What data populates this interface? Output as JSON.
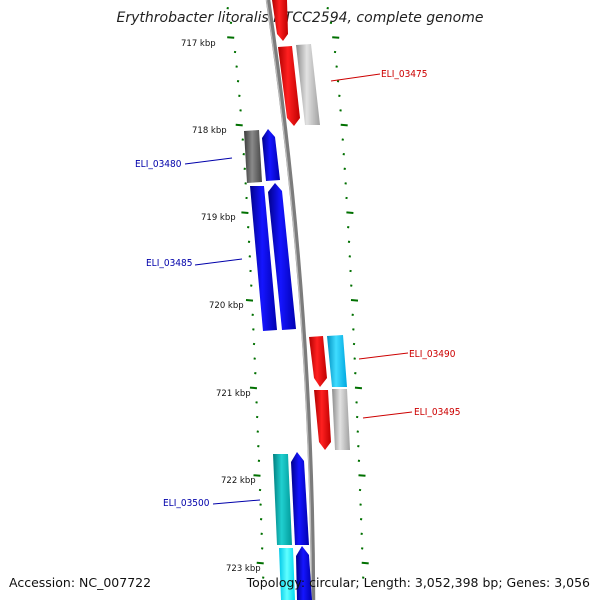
{
  "title": "Erythrobacter litoralis HTCC2594, complete genome",
  "footer": {
    "accession": "Accession: NC_007722",
    "topology": "Topology: circular; Length: 3,052,398 bp; Genes: 3,056"
  },
  "ticks": [
    "717 kbp",
    "718 kbp",
    "719 kbp",
    "720 kbp",
    "721 kbp",
    "722 kbp",
    "723 kbp"
  ],
  "gene_labels": [
    "ELI_03475",
    "ELI_03480",
    "ELI_03485",
    "ELI_03490",
    "ELI_03495",
    "ELI_03500"
  ],
  "colors": {
    "red": "#ff0000",
    "blue": "#0000ee",
    "grey": "#b9b9b9",
    "dark_grey": "#5a5a5a",
    "cyan": "#00c8ff",
    "teal": "#00b4b4",
    "tick_green": "#007000",
    "backbone": "#808080",
    "label_red": "#cc0000",
    "label_blue": "#0000aa"
  }
}
